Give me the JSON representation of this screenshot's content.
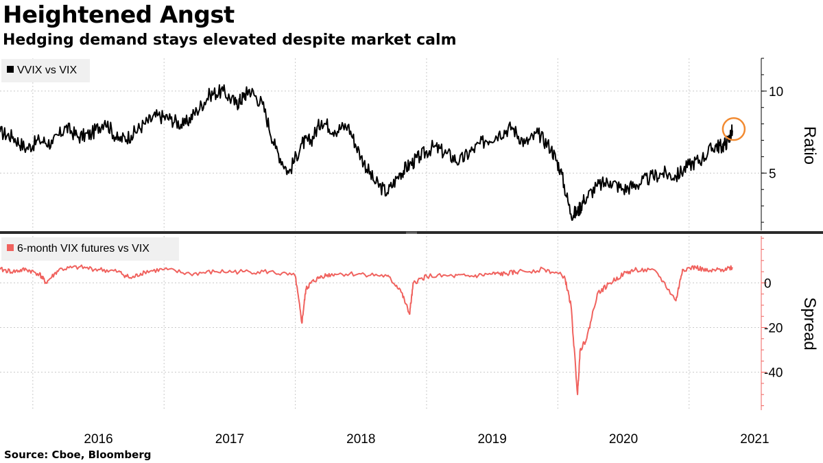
{
  "header": {
    "title": "Heightened Angst",
    "subtitle": "Hedging demand stays elevated despite market calm"
  },
  "footer": {
    "source": "Source:  Cboe, Bloomberg"
  },
  "colors": {
    "top_series": "#000000",
    "bottom_series": "#f0625e",
    "highlight_circle": "#f28a30",
    "grid": "#c8c8c8",
    "legend_bg": "#f0f0f0"
  },
  "chart_data": [
    {
      "type": "line",
      "panel": "top",
      "ylabel": "Ratio",
      "yticks": [
        5,
        10
      ],
      "ylim": [
        1.5,
        12
      ],
      "xlim": [
        2015.75,
        2021.55
      ],
      "x_ticks": [
        "2016",
        "2017",
        "2018",
        "2019",
        "2020",
        "2021"
      ],
      "legend_placement": "top-left",
      "grid": true,
      "annotations": [
        {
          "type": "circle",
          "x": 2021.33,
          "y": 7.6
        }
      ],
      "series": [
        {
          "name": "VVIX vs VIX",
          "x": [
            2015.75,
            2015.85,
            2015.95,
            2016.05,
            2016.15,
            2016.25,
            2016.35,
            2016.45,
            2016.55,
            2016.65,
            2016.75,
            2016.85,
            2016.95,
            2017.05,
            2017.15,
            2017.25,
            2017.35,
            2017.45,
            2017.55,
            2017.6,
            2017.65,
            2017.75,
            2017.85,
            2017.95,
            2018.05,
            2018.12,
            2018.2,
            2018.3,
            2018.4,
            2018.5,
            2018.6,
            2018.7,
            2018.8,
            2018.87,
            2018.95,
            2019.05,
            2019.15,
            2019.25,
            2019.35,
            2019.45,
            2019.55,
            2019.65,
            2019.75,
            2019.85,
            2019.95,
            2020.02,
            2020.1,
            2020.15,
            2020.2,
            2020.3,
            2020.4,
            2020.5,
            2020.6,
            2020.7,
            2020.8,
            2020.9,
            2021.0,
            2021.1,
            2021.2,
            2021.25,
            2021.3,
            2021.33
          ],
          "y": [
            7.5,
            7.2,
            6.5,
            7.0,
            6.8,
            7.8,
            7.2,
            7.4,
            8.2,
            7.0,
            7.3,
            8.0,
            8.5,
            8.3,
            7.9,
            8.8,
            9.8,
            10.0,
            9.2,
            9.6,
            10.1,
            9.2,
            6.5,
            5.0,
            6.8,
            7.0,
            8.2,
            7.6,
            7.9,
            6.0,
            4.5,
            3.8,
            5.0,
            5.5,
            6.0,
            6.6,
            6.2,
            5.7,
            6.4,
            7.0,
            7.4,
            7.8,
            6.8,
            7.4,
            6.5,
            5.2,
            2.5,
            2.6,
            3.4,
            4.2,
            4.5,
            4.0,
            4.3,
            4.7,
            5.0,
            4.8,
            5.5,
            5.9,
            6.7,
            6.6,
            7.0,
            7.6
          ]
        }
      ]
    },
    {
      "type": "line",
      "panel": "bottom",
      "ylabel": "Spread",
      "yticks": [
        0,
        -20,
        -40
      ],
      "ylim": [
        -57,
        21
      ],
      "xlim": [
        2015.75,
        2021.55
      ],
      "x_ticks": [
        "2016",
        "2017",
        "2018",
        "2019",
        "2020",
        "2021"
      ],
      "legend_placement": "top-left",
      "grid": true,
      "series": [
        {
          "name": "6-month VIX futures vs VIX",
          "x": [
            2015.75,
            2015.85,
            2015.95,
            2016.05,
            2016.1,
            2016.2,
            2016.35,
            2016.5,
            2016.65,
            2016.75,
            2016.85,
            2017.0,
            2017.2,
            2017.4,
            2017.6,
            2017.8,
            2018.0,
            2018.05,
            2018.08,
            2018.12,
            2018.2,
            2018.3,
            2018.5,
            2018.7,
            2018.8,
            2018.87,
            2018.9,
            2019.0,
            2019.2,
            2019.35,
            2019.5,
            2019.6,
            2019.7,
            2019.9,
            2020.05,
            2020.1,
            2020.15,
            2020.17,
            2020.22,
            2020.3,
            2020.4,
            2020.5,
            2020.6,
            2020.75,
            2020.9,
            2020.95,
            2021.05,
            2021.15,
            2021.25,
            2021.33
          ],
          "y": [
            6,
            5,
            6,
            4,
            0,
            6,
            7,
            6,
            5,
            2,
            5,
            6,
            4,
            5,
            5,
            5,
            3,
            -18,
            -3,
            0,
            3,
            4,
            4,
            3,
            -3,
            -14,
            0,
            3,
            3,
            3,
            4,
            4,
            5,
            6,
            3,
            -10,
            -50,
            -30,
            -25,
            -5,
            0,
            4,
            6,
            5,
            -8,
            6,
            7,
            5,
            6,
            7
          ]
        }
      ]
    }
  ]
}
